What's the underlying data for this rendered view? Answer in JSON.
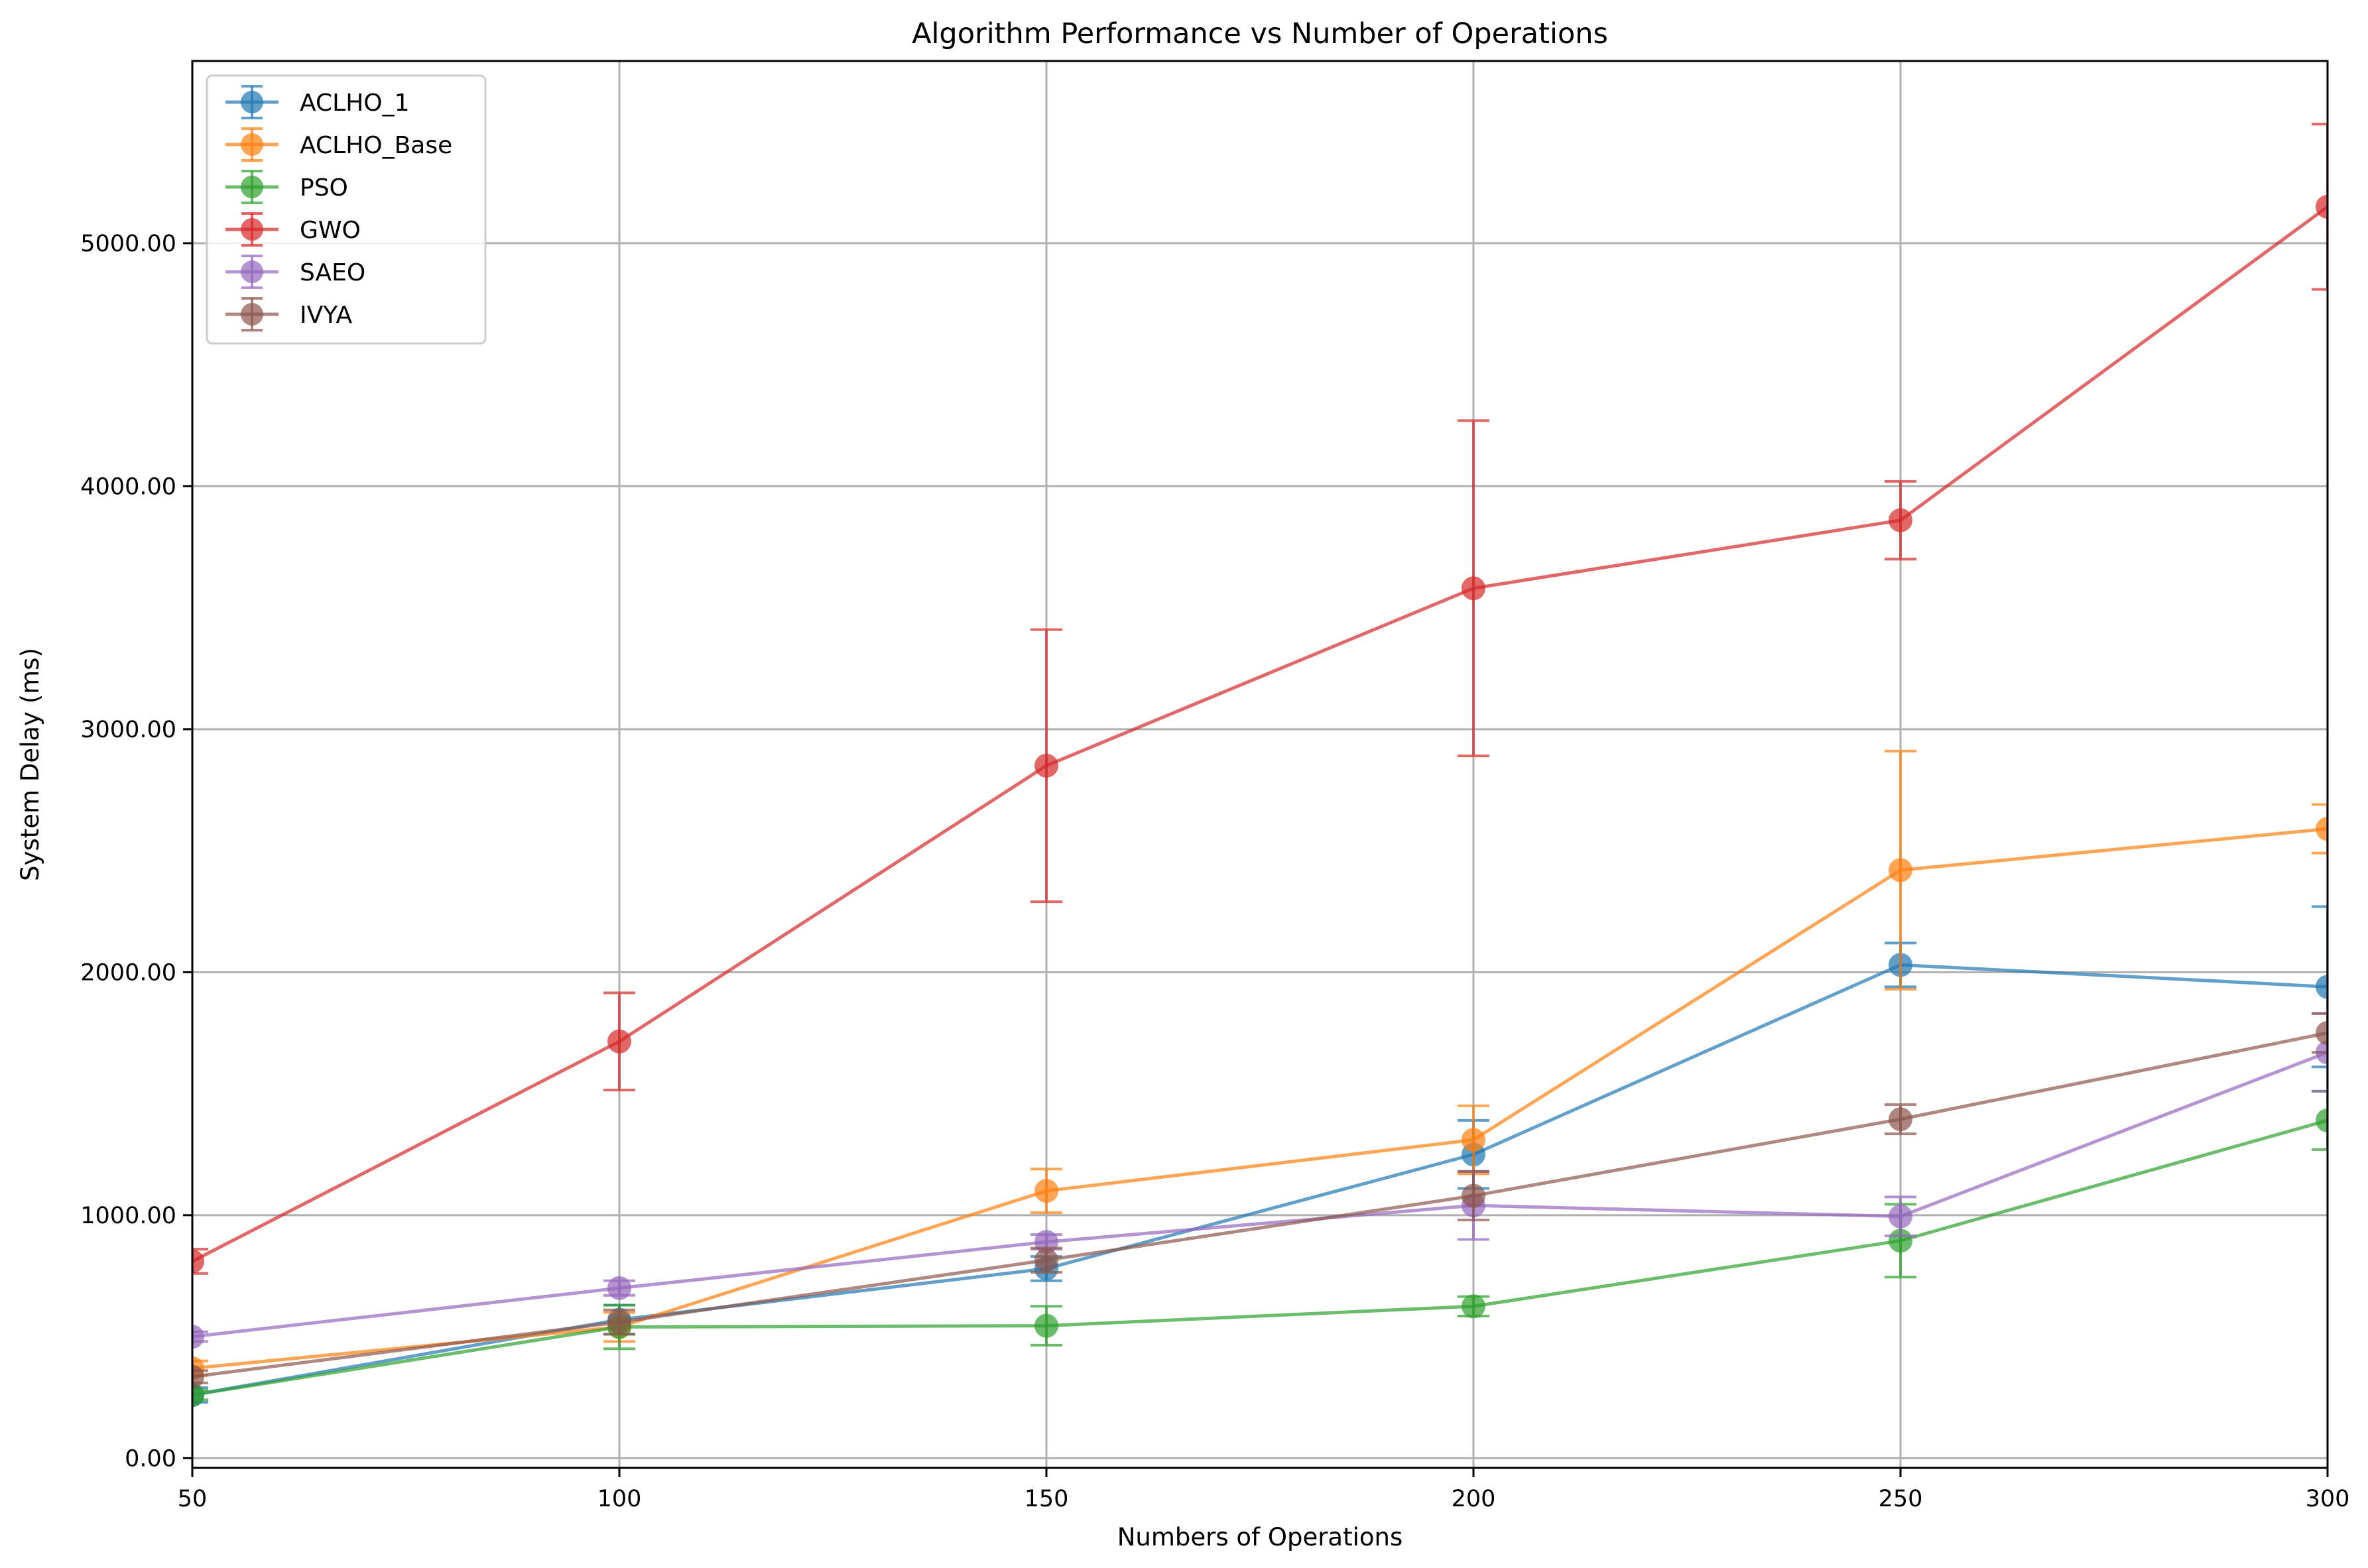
{
  "chart_data": {
    "type": "line",
    "title": "Algorithm Performance vs Number of Operations",
    "xlabel": "Numbers of Operations",
    "ylabel": "System Delay (ms)",
    "x": [
      50,
      100,
      150,
      200,
      250,
      300
    ],
    "xlim": [
      50,
      300
    ],
    "ylim": [
      -40,
      5750
    ],
    "xticks": [
      50,
      100,
      150,
      200,
      250,
      300
    ],
    "yticks": [
      0,
      1000,
      2000,
      3000,
      4000,
      5000
    ],
    "ytick_labels": [
      "0.00",
      "1000.00",
      "2000.00",
      "3000.00",
      "4000.00",
      "5000.00"
    ],
    "grid": true,
    "legend_position": "top-left",
    "error_bars": true,
    "series": [
      {
        "name": "ACLHO_1",
        "color": "#1f77b4",
        "values": [
          260,
          570,
          780,
          1250,
          2030,
          1940
        ],
        "errors": [
          30,
          60,
          50,
          140,
          90,
          330
        ]
      },
      {
        "name": "ACLHO_Base",
        "color": "#ff7f0e",
        "values": [
          370,
          540,
          1100,
          1310,
          2420,
          2590
        ],
        "errors": [
          30,
          60,
          90,
          140,
          490,
          100
        ]
      },
      {
        "name": "PSO",
        "color": "#2ca02c",
        "values": [
          260,
          540,
          545,
          625,
          895,
          1390
        ],
        "errors": [
          20,
          90,
          80,
          40,
          150,
          120
        ]
      },
      {
        "name": "GWO",
        "color": "#d62728",
        "values": [
          810,
          1715,
          2850,
          3580,
          3860,
          5150
        ],
        "errors": [
          50,
          200,
          560,
          690,
          160,
          340
        ]
      },
      {
        "name": "SAEO",
        "color": "#9467bd",
        "values": [
          500,
          700,
          890,
          1040,
          995,
          1670
        ],
        "errors": [
          20,
          30,
          30,
          140,
          80,
          160
        ]
      },
      {
        "name": "IVYA",
        "color": "#8c564b",
        "values": [
          335,
          560,
          815,
          1080,
          1395,
          1750
        ],
        "errors": [
          25,
          50,
          50,
          100,
          60,
          80
        ]
      }
    ]
  }
}
